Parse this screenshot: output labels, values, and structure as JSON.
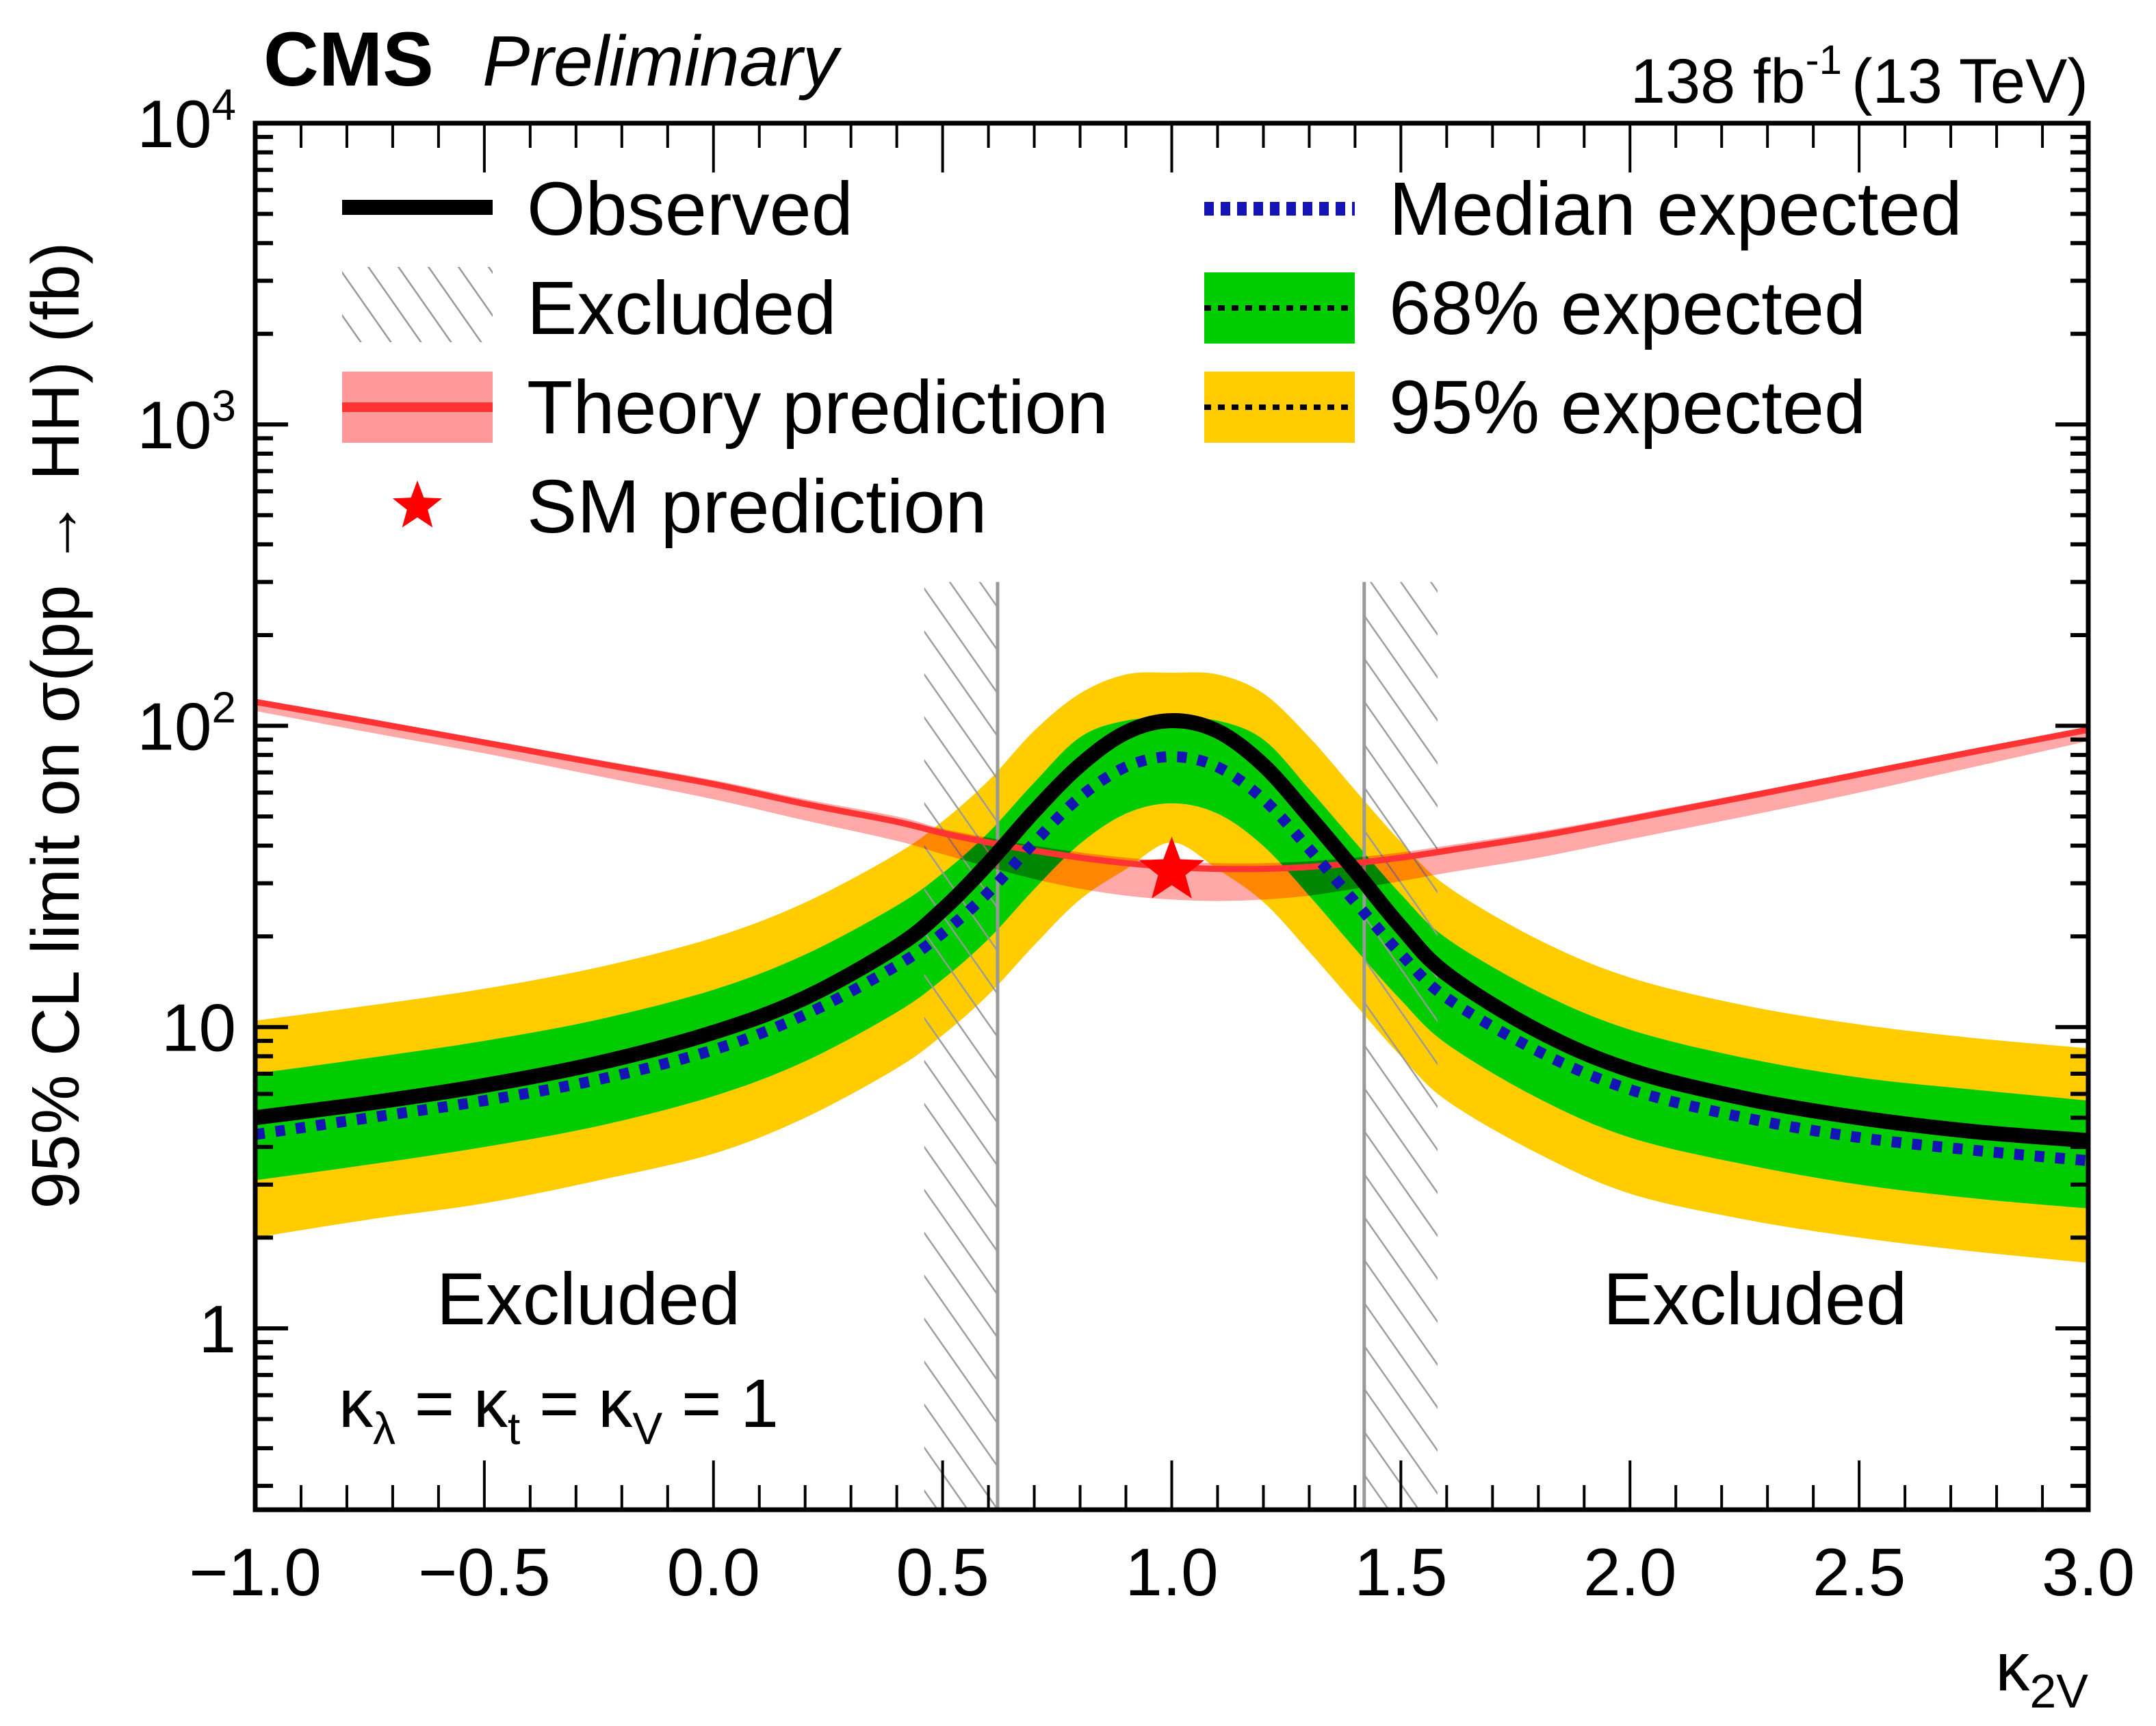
{
  "chart_data": {
    "type": "line",
    "header": {
      "experiment": "CMS",
      "status": "Preliminary",
      "lumi": "138 fb",
      "lumi_exp": "-1",
      "energy": "(13 TeV)"
    },
    "xlabel": "κ",
    "xlabel_sub": "2V",
    "ylabel": "95% CL limit on σ(pp → HH) (fb)",
    "xlim": [
      -1.0,
      3.0
    ],
    "ylim": [
      0.25,
      10000
    ],
    "yscale": "log",
    "x_ticks": [
      {
        "value": -1.0,
        "label": "−1.0"
      },
      {
        "value": -0.5,
        "label": "−0.5"
      },
      {
        "value": 0.0,
        "label": "0.0"
      },
      {
        "value": 0.5,
        "label": "0.5"
      },
      {
        "value": 1.0,
        "label": "1.0"
      },
      {
        "value": 1.5,
        "label": "1.5"
      },
      {
        "value": 2.0,
        "label": "2.0"
      },
      {
        "value": 2.5,
        "label": "2.5"
      },
      {
        "value": 3.0,
        "label": "3.0"
      }
    ],
    "y_ticks": [
      {
        "value": 1,
        "base": "1",
        "exp": ""
      },
      {
        "value": 10,
        "base": "10",
        "exp": ""
      },
      {
        "value": 100,
        "base": "10",
        "exp": "2"
      },
      {
        "value": 1000,
        "base": "10",
        "exp": "3"
      },
      {
        "value": 10000,
        "base": "10",
        "exp": "4"
      }
    ],
    "x": [
      -1.0,
      -0.75,
      -0.5,
      -0.25,
      0.0,
      0.2,
      0.4,
      0.5,
      0.6,
      0.7,
      0.8,
      0.9,
      1.0,
      1.1,
      1.2,
      1.3,
      1.4,
      1.5,
      1.6,
      1.8,
      2.0,
      2.25,
      2.5,
      2.75,
      3.0
    ],
    "series": [
      {
        "name": "Observed",
        "role": "observed",
        "values": [
          5.0,
          5.6,
          6.4,
          7.6,
          9.6,
          12.5,
          18.5,
          24.5,
          35,
          52,
          74,
          95,
          104,
          96,
          74,
          50,
          33,
          21.5,
          15,
          9.7,
          7.2,
          5.8,
          5.0,
          4.5,
          4.2
        ]
      },
      {
        "name": "Median expected",
        "role": "expected",
        "values": [
          4.4,
          5.0,
          5.7,
          6.7,
          8.4,
          11.0,
          16.0,
          20.5,
          28,
          41,
          58,
          73,
          79,
          73,
          57,
          39,
          26,
          17.5,
          12.5,
          8.3,
          6.2,
          5.0,
          4.3,
          3.9,
          3.6
        ]
      },
      {
        "name": "68% expected",
        "role": "band68",
        "lower": [
          3.1,
          3.5,
          4.0,
          4.7,
          5.9,
          7.7,
          11.2,
          14.4,
          19.6,
          28.7,
          40.6,
          51.1,
          55.3,
          51.1,
          39.9,
          27.3,
          18.2,
          12.3,
          8.8,
          5.8,
          4.3,
          3.5,
          3.0,
          2.7,
          2.5
        ],
        "upper": [
          7.0,
          7.9,
          9.0,
          10.6,
          13.3,
          17.4,
          25.3,
          32.4,
          44.2,
          64.8,
          91.6,
          104,
          106,
          104,
          90,
          61.6,
          41.1,
          27.6,
          19.7,
          13.1,
          9.8,
          7.9,
          6.8,
          6.2,
          5.7
        ]
      },
      {
        "name": "95% expected",
        "role": "band95",
        "lower": [
          2.0,
          2.3,
          2.6,
          3.1,
          3.8,
          5.0,
          7.3,
          9.4,
          12.8,
          18.7,
          26.5,
          33.4,
          41,
          33.4,
          26.0,
          17.8,
          11.9,
          8.0,
          5.7,
          3.8,
          2.8,
          2.3,
          2.0,
          1.8,
          1.65
        ]
      },
      {
        "name": "95% expected upper",
        "role": "band95_upper",
        "upper": [
          10.5,
          11.8,
          13.4,
          15.8,
          19.8,
          25.9,
          37.6,
          48.2,
          65.7,
          96.3,
          128,
          148,
          150,
          148,
          128,
          91.7,
          61.2,
          41.2,
          29.4,
          19.5,
          14.6,
          11.8,
          10.2,
          9.2,
          8.5
        ]
      },
      {
        "name": "Theory prediction",
        "role": "theory",
        "values": [
          120,
          103,
          88,
          75,
          64,
          55,
          48,
          44,
          41,
          38.5,
          36.5,
          35,
          34,
          33.5,
          33.5,
          34,
          35,
          36.5,
          38.5,
          43,
          49,
          58,
          69,
          82,
          97
        ],
        "lower": [
          112,
          95,
          81,
          68,
          57,
          48.5,
          41.5,
          37.5,
          34,
          31,
          28.8,
          27.3,
          26.5,
          26.2,
          26.5,
          27.3,
          28.8,
          30.5,
          32.5,
          36.5,
          42,
          50,
          60,
          73,
          89
        ],
        "upper": [
          122,
          105,
          90,
          77,
          66,
          57,
          50,
          45.5,
          42.5,
          40,
          38,
          36.5,
          35.5,
          35,
          35,
          35.5,
          36.5,
          38,
          40,
          44.5,
          50.5,
          59.5,
          70.5,
          84,
          99
        ]
      }
    ],
    "sm_point": {
      "x": 1.0,
      "y": 33.0,
      "label": "SM prediction"
    },
    "excluded_regions": [
      {
        "from": -1.0,
        "to": 0.62,
        "label": "Excluded",
        "hatch_from": 0.46
      },
      {
        "from": 1.42,
        "to": 3.0,
        "label": "Excluded",
        "hatch_to": 1.58
      }
    ],
    "annotation": {
      "k1": "κ",
      "s1": "λ",
      "eq1": " = ",
      "k2": "κ",
      "s2": "t",
      "eq2": " = ",
      "k3": "κ",
      "s3": "V",
      "eq3": " = 1"
    },
    "legend": {
      "placement": "top",
      "entries": [
        {
          "label": "Observed",
          "style": "observed"
        },
        {
          "label": "Median expected",
          "style": "expected"
        },
        {
          "label": "Excluded",
          "style": "hatch"
        },
        {
          "label": "68% expected",
          "style": "band68"
        },
        {
          "label": "Theory prediction",
          "style": "theory"
        },
        {
          "label": "95% expected",
          "style": "band95"
        },
        {
          "label": "SM prediction",
          "style": "star"
        }
      ]
    },
    "colors": {
      "observed": "#000000",
      "expected": "#1414b4",
      "band68": "#00cc00",
      "band95": "#ffcc00",
      "theory_line": "#ff3333",
      "theory_band": "#ff9999",
      "hatch": "#999999",
      "star": "#ff0000"
    }
  }
}
